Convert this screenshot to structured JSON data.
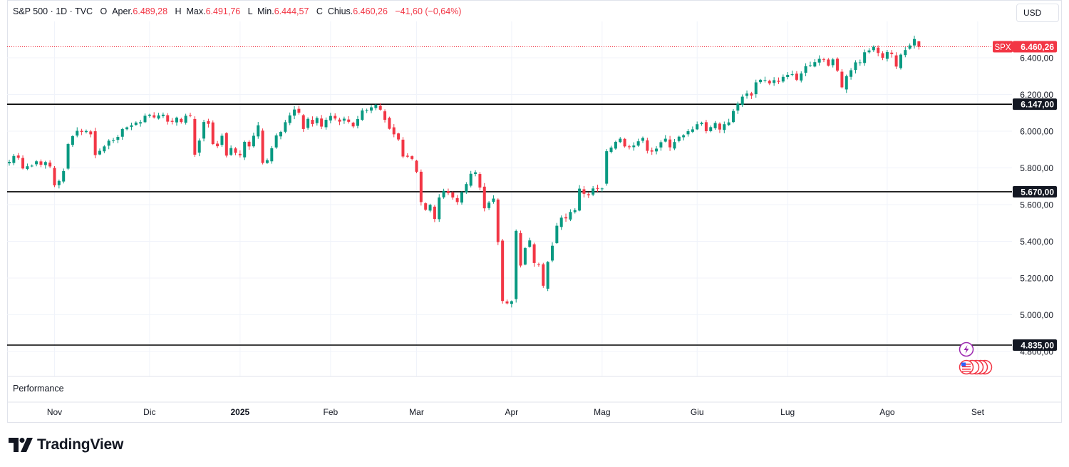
{
  "legend": {
    "symbol": "S&P 500 · 1D · TVC",
    "open_label": "O",
    "open_prefix": "Aper.",
    "open_value": "6.489,28",
    "high_label": "H",
    "high_prefix": "Max.",
    "high_value": "6.491,76",
    "low_label": "L",
    "low_prefix": "Min.",
    "low_value": "6.444,57",
    "close_label": "C",
    "close_prefix": "Chius.",
    "close_value": "6.460,26",
    "change_value": "−41,60 (−0,64%)"
  },
  "currency_button": "USD",
  "performance_label": "Performance",
  "brand": "TradingView",
  "colors": {
    "up": "#089981",
    "down": "#f23645",
    "level_line": "#000000",
    "grid": "#f0f3fa",
    "axis_text": "#131722"
  },
  "chart_data": {
    "type": "candlestick",
    "ylim": [
      4760,
      6560
    ],
    "y_ticks": [
      {
        "value": 4800,
        "label": "4.800,00"
      },
      {
        "value": 5000,
        "label": "5.000,00"
      },
      {
        "value": 5200,
        "label": "5.200,00"
      },
      {
        "value": 5400,
        "label": "5.400,00"
      },
      {
        "value": 5600,
        "label": "5.600,00"
      },
      {
        "value": 5800,
        "label": "5.800,00"
      },
      {
        "value": 6000,
        "label": "6.000,00"
      },
      {
        "value": 6200,
        "label": "6.200,00"
      },
      {
        "value": 6400,
        "label": "6.400,00"
      }
    ],
    "x_ticks": [
      {
        "label": "Nov",
        "index": 10,
        "bold": false
      },
      {
        "label": "Dic",
        "index": 31,
        "bold": false
      },
      {
        "label": "2025",
        "index": 51,
        "bold": true
      },
      {
        "label": "Feb",
        "index": 71,
        "bold": false
      },
      {
        "label": "Mar",
        "index": 90,
        "bold": false
      },
      {
        "label": "Apr",
        "index": 111,
        "bold": false
      },
      {
        "label": "Mag",
        "index": 131,
        "bold": false
      },
      {
        "label": "Giu",
        "index": 152,
        "bold": false
      },
      {
        "label": "Lug",
        "index": 172,
        "bold": false
      },
      {
        "label": "Ago",
        "index": 194,
        "bold": false
      },
      {
        "label": "Set",
        "index": 214,
        "bold": false
      }
    ],
    "levels": [
      {
        "value": 6147,
        "label": "6.147,00"
      },
      {
        "value": 5670,
        "label": "5.670,00"
      },
      {
        "value": 4835,
        "label": "4.835,00"
      }
    ],
    "last_price": {
      "value": 6460.26,
      "symbol": "SPX",
      "label": "6.460,26"
    },
    "closes": [
      5833,
      5865,
      5855,
      5797,
      5809,
      5812,
      5836,
      5817,
      5832,
      5808,
      5705,
      5729,
      5783,
      5930,
      5973,
      6002,
      5996,
      6001,
      5983,
      5870,
      5893,
      5917,
      5948,
      5950,
      5969,
      6012,
      6021,
      6032,
      6047,
      6049,
      6084,
      6090,
      6075,
      6086,
      6090,
      6052,
      6051,
      6074,
      6050,
      6084,
      6087,
      5872,
      5949,
      6050,
      6040,
      5930,
      5918,
      5975,
      5867,
      5908,
      5882,
      5869,
      5942,
      5917,
      5975,
      6032,
      5827,
      5842,
      5907,
      5977,
      5996,
      6049,
      6086,
      6118,
      6101,
      6012,
      6067,
      6039,
      6072,
      6025,
      6062,
      6083,
      6069,
      6052,
      6068,
      6051,
      6026,
      6066,
      6113,
      6115,
      6130,
      6144,
      6117,
      6062,
      6013,
      5983,
      5955,
      5862,
      5861,
      5849,
      5779,
      5614,
      5572,
      5599,
      5522,
      5639,
      5675,
      5663,
      5639,
      5614,
      5668,
      5712,
      5768,
      5776,
      5693,
      5580,
      5611,
      5633,
      5396,
      5075,
      5062,
      5074,
      5457,
      5268,
      5363,
      5405,
      5282,
      5275,
      5158,
      5288,
      5376,
      5485,
      5529,
      5525,
      5560,
      5570,
      5687,
      5659,
      5651,
      5688,
      5686,
      5688,
      5891,
      5911,
      5942,
      5959,
      5917,
      5913,
      5922,
      5945,
      5963,
      5893,
      5889,
      5905,
      5940,
      5959,
      5912,
      5941,
      5970,
      5978,
      6000,
      6010,
      6038,
      6046,
      6000,
      6022,
      6045,
      6009,
      6038,
      6048,
      6110,
      6150,
      6188,
      6205,
      6194,
      6266,
      6280,
      6279,
      6260,
      6278,
      6269,
      6296,
      6307,
      6311,
      6280,
      6314,
      6354,
      6359,
      6376,
      6394,
      6390,
      6357,
      6391,
      6330,
      6239,
      6300,
      6332,
      6375,
      6375,
      6430,
      6440,
      6460,
      6426,
      6400,
      6431,
      6420,
      6352,
      6417,
      6442,
      6467,
      6502,
      6460
    ]
  }
}
